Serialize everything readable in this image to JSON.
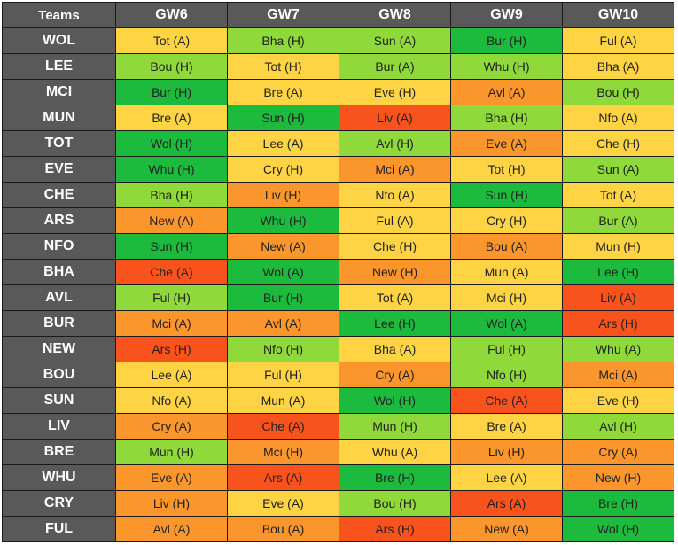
{
  "header": {
    "teams_label": "Teams",
    "gameweeks": [
      "GW6",
      "GW7",
      "GW8",
      "GW9",
      "GW10"
    ]
  },
  "difficulty_colors": {
    "1": "#1cbb3e",
    "2": "#8fd93a",
    "3": "#fed444",
    "4": "#fb962d",
    "5": "#f8531d"
  },
  "rows": [
    {
      "team": "WOL",
      "fixtures": [
        {
          "text": "Tot (A)",
          "level": 3
        },
        {
          "text": "Bha (H)",
          "level": 2
        },
        {
          "text": "Sun (A)",
          "level": 2
        },
        {
          "text": "Bur (H)",
          "level": 1
        },
        {
          "text": "Ful (A)",
          "level": 3
        }
      ]
    },
    {
      "team": "LEE",
      "fixtures": [
        {
          "text": "Bou (H)",
          "level": 2
        },
        {
          "text": "Tot (H)",
          "level": 3
        },
        {
          "text": "Bur (A)",
          "level": 2
        },
        {
          "text": "Whu (H)",
          "level": 2
        },
        {
          "text": "Bha (A)",
          "level": 3
        }
      ]
    },
    {
      "team": "MCI",
      "fixtures": [
        {
          "text": "Bur (H)",
          "level": 1
        },
        {
          "text": "Bre (A)",
          "level": 3
        },
        {
          "text": "Eve (H)",
          "level": 3
        },
        {
          "text": "Avl (A)",
          "level": 4
        },
        {
          "text": "Bou (H)",
          "level": 2
        }
      ]
    },
    {
      "team": "MUN",
      "fixtures": [
        {
          "text": "Bre (A)",
          "level": 3
        },
        {
          "text": "Sun (H)",
          "level": 1
        },
        {
          "text": "Liv (A)",
          "level": 5
        },
        {
          "text": "Bha (H)",
          "level": 2
        },
        {
          "text": "Nfo (A)",
          "level": 3
        }
      ]
    },
    {
      "team": "TOT",
      "fixtures": [
        {
          "text": "Wol (H)",
          "level": 1
        },
        {
          "text": "Lee (A)",
          "level": 3
        },
        {
          "text": "Avl (H)",
          "level": 2
        },
        {
          "text": "Eve (A)",
          "level": 4
        },
        {
          "text": "Che (H)",
          "level": 3
        }
      ]
    },
    {
      "team": "EVE",
      "fixtures": [
        {
          "text": "Whu (H)",
          "level": 1
        },
        {
          "text": "Cry (H)",
          "level": 3
        },
        {
          "text": "Mci (A)",
          "level": 4
        },
        {
          "text": "Tot (H)",
          "level": 3
        },
        {
          "text": "Sun (A)",
          "level": 2
        }
      ]
    },
    {
      "team": "CHE",
      "fixtures": [
        {
          "text": "Bha (H)",
          "level": 2
        },
        {
          "text": "Liv (H)",
          "level": 4
        },
        {
          "text": "Nfo (A)",
          "level": 3
        },
        {
          "text": "Sun (H)",
          "level": 1
        },
        {
          "text": "Tot (A)",
          "level": 3
        }
      ]
    },
    {
      "team": "ARS",
      "fixtures": [
        {
          "text": "New (A)",
          "level": 4
        },
        {
          "text": "Whu (H)",
          "level": 1
        },
        {
          "text": "Ful (A)",
          "level": 3
        },
        {
          "text": "Cry (H)",
          "level": 3
        },
        {
          "text": "Bur (A)",
          "level": 2
        }
      ]
    },
    {
      "team": "NFO",
      "fixtures": [
        {
          "text": "Sun (H)",
          "level": 1
        },
        {
          "text": "New (A)",
          "level": 4
        },
        {
          "text": "Che (H)",
          "level": 3
        },
        {
          "text": "Bou (A)",
          "level": 4
        },
        {
          "text": "Mun (H)",
          "level": 3
        }
      ]
    },
    {
      "team": "BHA",
      "fixtures": [
        {
          "text": "Che (A)",
          "level": 5
        },
        {
          "text": "Wol (A)",
          "level": 1
        },
        {
          "text": "New (H)",
          "level": 4
        },
        {
          "text": "Mun (A)",
          "level": 3
        },
        {
          "text": "Lee (H)",
          "level": 1
        }
      ]
    },
    {
      "team": "AVL",
      "fixtures": [
        {
          "text": "Ful (H)",
          "level": 2
        },
        {
          "text": "Bur (H)",
          "level": 1
        },
        {
          "text": "Tot (A)",
          "level": 3
        },
        {
          "text": "Mci (H)",
          "level": 3
        },
        {
          "text": "Liv (A)",
          "level": 5
        }
      ]
    },
    {
      "team": "BUR",
      "fixtures": [
        {
          "text": "Mci (A)",
          "level": 4
        },
        {
          "text": "Avl (A)",
          "level": 4
        },
        {
          "text": "Lee (H)",
          "level": 1
        },
        {
          "text": "Wol (A)",
          "level": 1
        },
        {
          "text": "Ars (H)",
          "level": 5
        }
      ]
    },
    {
      "team": "NEW",
      "fixtures": [
        {
          "text": "Ars (H)",
          "level": 5
        },
        {
          "text": "Nfo (H)",
          "level": 2
        },
        {
          "text": "Bha (A)",
          "level": 3
        },
        {
          "text": "Ful (H)",
          "level": 2
        },
        {
          "text": "Whu (A)",
          "level": 2
        }
      ]
    },
    {
      "team": "BOU",
      "fixtures": [
        {
          "text": "Lee (A)",
          "level": 3
        },
        {
          "text": "Ful (H)",
          "level": 3
        },
        {
          "text": "Cry (A)",
          "level": 4
        },
        {
          "text": "Nfo (H)",
          "level": 2
        },
        {
          "text": "Mci (A)",
          "level": 4
        }
      ]
    },
    {
      "team": "SUN",
      "fixtures": [
        {
          "text": "Nfo (A)",
          "level": 3
        },
        {
          "text": "Mun (A)",
          "level": 3
        },
        {
          "text": "Wol (H)",
          "level": 1
        },
        {
          "text": "Che (A)",
          "level": 5
        },
        {
          "text": "Eve (H)",
          "level": 3
        }
      ]
    },
    {
      "team": "LIV",
      "fixtures": [
        {
          "text": "Cry (A)",
          "level": 4
        },
        {
          "text": "Che (A)",
          "level": 5
        },
        {
          "text": "Mun (H)",
          "level": 2
        },
        {
          "text": "Bre (A)",
          "level": 3
        },
        {
          "text": "Avl (H)",
          "level": 2
        }
      ]
    },
    {
      "team": "BRE",
      "fixtures": [
        {
          "text": "Mun (H)",
          "level": 2
        },
        {
          "text": "Mci (H)",
          "level": 4
        },
        {
          "text": "Whu (A)",
          "level": 3
        },
        {
          "text": "Liv (H)",
          "level": 4
        },
        {
          "text": "Cry (A)",
          "level": 4
        }
      ]
    },
    {
      "team": "WHU",
      "fixtures": [
        {
          "text": "Eve (A)",
          "level": 4
        },
        {
          "text": "Ars (A)",
          "level": 5
        },
        {
          "text": "Bre (H)",
          "level": 1
        },
        {
          "text": "Lee (A)",
          "level": 3
        },
        {
          "text": "New (H)",
          "level": 4
        }
      ]
    },
    {
      "team": "CRY",
      "fixtures": [
        {
          "text": "Liv (H)",
          "level": 4
        },
        {
          "text": "Eve (A)",
          "level": 3
        },
        {
          "text": "Bou (H)",
          "level": 2
        },
        {
          "text": "Ars (A)",
          "level": 5
        },
        {
          "text": "Bre (H)",
          "level": 1
        }
      ]
    },
    {
      "team": "FUL",
      "fixtures": [
        {
          "text": "Avl (A)",
          "level": 4
        },
        {
          "text": "Bou (A)",
          "level": 4
        },
        {
          "text": "Ars (H)",
          "level": 5
        },
        {
          "text": "New (A)",
          "level": 4
        },
        {
          "text": "Wol (H)",
          "level": 1
        }
      ]
    }
  ]
}
